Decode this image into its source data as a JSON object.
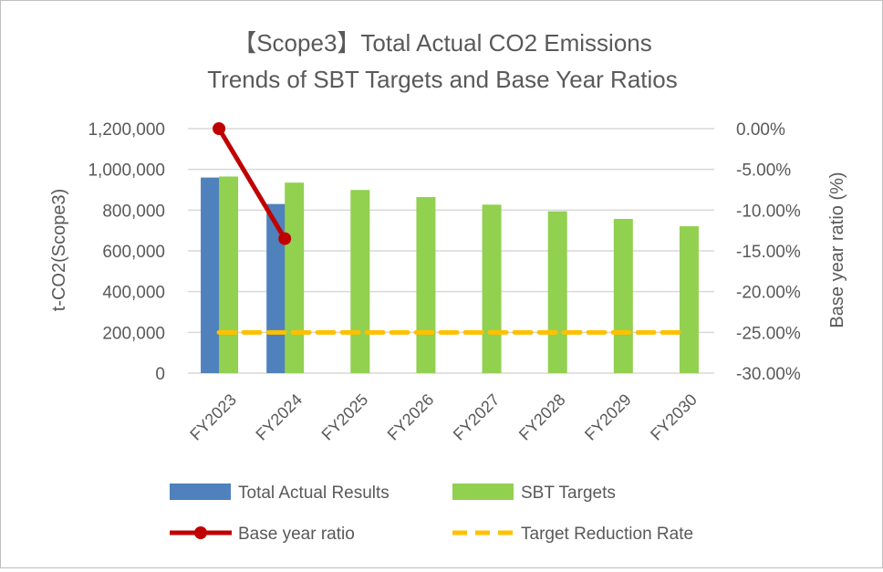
{
  "chart_data": {
    "type": "bar",
    "title": [
      "【Scope3】Total Actual CO2 Emissions",
      "Trends of SBT Targets and Base Year Ratios"
    ],
    "categories": [
      "FY2023",
      "FY2024",
      "FY2025",
      "FY2026",
      "FY2027",
      "FY2028",
      "FY2029",
      "FY2030"
    ],
    "ylabel": "t-CO2(Scope3)",
    "y2label": "Base year ratio (%)",
    "ylim": [
      0,
      1200000
    ],
    "y2lim": [
      -30,
      0
    ],
    "yticks": [
      "0",
      "200,000",
      "400,000",
      "600,000",
      "800,000",
      "1,000,000",
      "1,200,000"
    ],
    "y2ticks": [
      "-30.00%",
      "-25.00%",
      "-20.00%",
      "-15.00%",
      "-10.00%",
      "-5.00%",
      "0.00%"
    ],
    "grid": true,
    "legend_position": "bottom",
    "series": [
      {
        "name": "Total Actual Results",
        "type": "bar",
        "axis": "left",
        "color": "#4f81bd",
        "values": [
          960000,
          830000,
          null,
          null,
          null,
          null,
          null,
          null
        ]
      },
      {
        "name": "SBT Targets",
        "type": "bar",
        "axis": "left",
        "color": "#92d050",
        "values": [
          965000,
          935000,
          899000,
          864000,
          827000,
          794000,
          757000,
          721000
        ]
      },
      {
        "name": "Base year ratio",
        "type": "line",
        "axis": "right",
        "color": "#c00000",
        "marker": "circle",
        "values": [
          0,
          -13.5,
          null,
          null,
          null,
          null,
          null,
          null
        ]
      },
      {
        "name": "Target Reduction Rate",
        "type": "line",
        "axis": "right",
        "color": "#ffc000",
        "style": "dashed",
        "values": [
          -25,
          -25,
          -25,
          -25,
          -25,
          -25,
          -25,
          -25
        ]
      }
    ]
  }
}
